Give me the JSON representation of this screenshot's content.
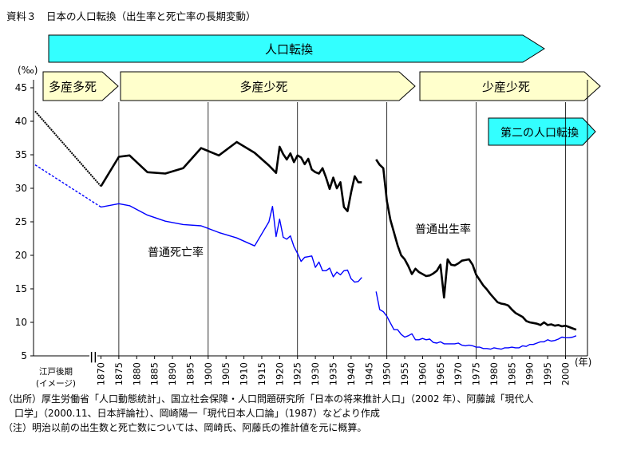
{
  "caption": "資料３　日本の人口転換（出生率と死亡率の長期変動）",
  "notes": {
    "source_line1": "（出所）厚生労働省「人口動態統計」、国立社会保障・人口問題研究所「日本の将来推計人口」（2002 年）、阿藤誠「現代人",
    "source_line2": "口学」（2000.11、日本評論社）、岡崎陽一「現代日本人口論」（1987）などより作成",
    "note_line": "（注）明治以前の出生数と死亡数については、岡崎氏、阿藤氏の推計値を元に概算。"
  },
  "chart_data": {
    "type": "line",
    "title": "日本の人口転換（出生率と死亡率の長期変動）",
    "ylabel": "(‰)",
    "xlabel": "(年)",
    "ylim": [
      5,
      45
    ],
    "yticks": [
      5,
      10,
      15,
      20,
      25,
      30,
      35,
      40,
      45
    ],
    "xlim": [
      1870,
      2003
    ],
    "xticks": [
      "1870",
      "1875",
      "1880",
      "1885",
      "1890",
      "1895",
      "1900",
      "1905",
      "1910",
      "1915",
      "1920",
      "1925",
      "1930",
      "1935",
      "1940",
      "1945",
      "1950",
      "1955",
      "1960",
      "1965",
      "1970",
      "1975",
      "1980",
      "1985",
      "1990",
      "1995",
      "2000"
    ],
    "edo_label_line1": "江戸後期",
    "edo_label_line2": "(イメージ)",
    "axis_break": "||",
    "grid": "vertical lines at 1875, 1900, 1925, 1950, 1975, 2000",
    "phase_banner": "人口転換",
    "phases": [
      {
        "label": "多産多死",
        "start": "edo",
        "end": 1874
      },
      {
        "label": "多産少死",
        "start": 1875,
        "end": 1949
      },
      {
        "label": "少産少死",
        "start": 1953,
        "end": 2001
      }
    ],
    "second_transition_label": "第二の人口転換",
    "series": [
      {
        "name": "普通出生率",
        "color": "#000000",
        "edo_start": 41.5,
        "edo_dashed": false,
        "points": [
          [
            1870,
            30.3
          ],
          [
            1875,
            34.7
          ],
          [
            1878,
            34.9
          ],
          [
            1883,
            32.4
          ],
          [
            1888,
            32.2
          ],
          [
            1893,
            33.0
          ],
          [
            1898,
            36.0
          ],
          [
            1903,
            34.9
          ],
          [
            1908,
            36.9
          ],
          [
            1913,
            35.3
          ],
          [
            1917,
            33.4
          ],
          [
            1919,
            32.3
          ],
          [
            1920,
            36.2
          ],
          [
            1921,
            35.1
          ],
          [
            1922,
            34.3
          ],
          [
            1923,
            35.2
          ],
          [
            1924,
            33.9
          ],
          [
            1925,
            34.9
          ],
          [
            1926,
            34.6
          ],
          [
            1927,
            33.6
          ],
          [
            1928,
            34.4
          ],
          [
            1929,
            32.8
          ],
          [
            1930,
            32.4
          ],
          [
            1931,
            32.2
          ],
          [
            1932,
            33.0
          ],
          [
            1933,
            31.6
          ],
          [
            1934,
            29.9
          ],
          [
            1935,
            31.6
          ],
          [
            1936,
            30.0
          ],
          [
            1937,
            30.9
          ],
          [
            1938,
            27.2
          ],
          [
            1939,
            26.6
          ],
          [
            1940,
            29.4
          ],
          [
            1941,
            31.8
          ],
          [
            1942,
            30.9
          ],
          [
            1943,
            30.9
          ],
          null,
          [
            1947,
            34.3
          ],
          [
            1948,
            33.5
          ],
          [
            1949,
            33.0
          ],
          [
            1950,
            28.1
          ],
          [
            1951,
            25.3
          ],
          [
            1952,
            23.4
          ],
          [
            1953,
            21.5
          ],
          [
            1954,
            20.0
          ],
          [
            1955,
            19.4
          ],
          [
            1956,
            18.4
          ],
          [
            1957,
            17.2
          ],
          [
            1958,
            18.0
          ],
          [
            1959,
            17.5
          ],
          [
            1960,
            17.2
          ],
          [
            1961,
            16.9
          ],
          [
            1962,
            17.0
          ],
          [
            1963,
            17.3
          ],
          [
            1964,
            17.7
          ],
          [
            1965,
            18.6
          ],
          [
            1966,
            13.7
          ],
          [
            1967,
            19.4
          ],
          [
            1968,
            18.6
          ],
          [
            1969,
            18.5
          ],
          [
            1970,
            18.8
          ],
          [
            1971,
            19.2
          ],
          [
            1972,
            19.3
          ],
          [
            1973,
            19.4
          ],
          [
            1974,
            18.6
          ],
          [
            1975,
            17.1
          ],
          [
            1976,
            16.3
          ],
          [
            1977,
            15.5
          ],
          [
            1978,
            14.9
          ],
          [
            1979,
            14.2
          ],
          [
            1980,
            13.6
          ],
          [
            1981,
            13.0
          ],
          [
            1982,
            12.8
          ],
          [
            1983,
            12.7
          ],
          [
            1984,
            12.5
          ],
          [
            1985,
            11.9
          ],
          [
            1986,
            11.4
          ],
          [
            1987,
            11.1
          ],
          [
            1988,
            10.8
          ],
          [
            1989,
            10.2
          ],
          [
            1990,
            10.0
          ],
          [
            1991,
            9.9
          ],
          [
            1992,
            9.8
          ],
          [
            1993,
            9.6
          ],
          [
            1994,
            10.0
          ],
          [
            1995,
            9.6
          ],
          [
            1996,
            9.7
          ],
          [
            1997,
            9.5
          ],
          [
            1998,
            9.6
          ],
          [
            1999,
            9.4
          ],
          [
            2000,
            9.5
          ],
          [
            2001,
            9.3
          ],
          [
            2002,
            9.1
          ],
          [
            2003,
            8.9
          ]
        ]
      },
      {
        "name": "普通死亡率",
        "color": "#0000ff",
        "edo_start": 33.5,
        "edo_dashed": true,
        "points": [
          [
            1870,
            27.2
          ],
          [
            1875,
            27.7
          ],
          [
            1878,
            27.4
          ],
          [
            1883,
            26.0
          ],
          [
            1888,
            25.1
          ],
          [
            1893,
            24.6
          ],
          [
            1898,
            24.4
          ],
          [
            1903,
            23.4
          ],
          [
            1908,
            22.6
          ],
          [
            1913,
            21.4
          ],
          [
            1917,
            25.0
          ],
          [
            1918,
            27.3
          ],
          [
            1919,
            22.8
          ],
          [
            1920,
            25.4
          ],
          [
            1921,
            22.7
          ],
          [
            1922,
            22.4
          ],
          [
            1923,
            22.9
          ],
          [
            1924,
            21.3
          ],
          [
            1925,
            20.3
          ],
          [
            1926,
            19.1
          ],
          [
            1927,
            19.7
          ],
          [
            1928,
            19.8
          ],
          [
            1929,
            19.9
          ],
          [
            1930,
            18.2
          ],
          [
            1931,
            19.0
          ],
          [
            1932,
            17.7
          ],
          [
            1933,
            17.7
          ],
          [
            1934,
            18.1
          ],
          [
            1935,
            16.8
          ],
          [
            1936,
            17.5
          ],
          [
            1937,
            17.1
          ],
          [
            1938,
            17.7
          ],
          [
            1939,
            17.8
          ],
          [
            1940,
            16.5
          ],
          [
            1941,
            16.0
          ],
          [
            1942,
            16.1
          ],
          [
            1943,
            16.7
          ],
          null,
          [
            1947,
            14.6
          ],
          [
            1948,
            11.9
          ],
          [
            1949,
            11.6
          ],
          [
            1950,
            10.9
          ],
          [
            1951,
            9.9
          ],
          [
            1952,
            8.9
          ],
          [
            1953,
            8.9
          ],
          [
            1954,
            8.2
          ],
          [
            1955,
            7.8
          ],
          [
            1956,
            8.0
          ],
          [
            1957,
            8.3
          ],
          [
            1958,
            7.4
          ],
          [
            1959,
            7.4
          ],
          [
            1960,
            7.6
          ],
          [
            1961,
            7.4
          ],
          [
            1962,
            7.5
          ],
          [
            1963,
            7.0
          ],
          [
            1964,
            6.9
          ],
          [
            1965,
            7.1
          ],
          [
            1966,
            6.8
          ],
          [
            1967,
            6.8
          ],
          [
            1968,
            6.8
          ],
          [
            1969,
            6.8
          ],
          [
            1970,
            6.9
          ],
          [
            1971,
            6.6
          ],
          [
            1972,
            6.5
          ],
          [
            1973,
            6.6
          ],
          [
            1974,
            6.5
          ],
          [
            1975,
            6.3
          ],
          [
            1976,
            6.3
          ],
          [
            1977,
            6.1
          ],
          [
            1978,
            6.1
          ],
          [
            1979,
            6.0
          ],
          [
            1980,
            6.2
          ],
          [
            1981,
            6.1
          ],
          [
            1982,
            6.0
          ],
          [
            1983,
            6.2
          ],
          [
            1984,
            6.2
          ],
          [
            1985,
            6.3
          ],
          [
            1986,
            6.2
          ],
          [
            1987,
            6.2
          ],
          [
            1988,
            6.5
          ],
          [
            1989,
            6.4
          ],
          [
            1990,
            6.7
          ],
          [
            1991,
            6.7
          ],
          [
            1992,
            6.9
          ],
          [
            1993,
            7.1
          ],
          [
            1994,
            7.1
          ],
          [
            1995,
            7.4
          ],
          [
            1996,
            7.2
          ],
          [
            1997,
            7.3
          ],
          [
            1998,
            7.5
          ],
          [
            1999,
            7.8
          ],
          [
            2000,
            7.7
          ],
          [
            2001,
            7.7
          ],
          [
            2002,
            7.8
          ],
          [
            2003,
            8.0
          ]
        ]
      }
    ],
    "annotations": [
      {
        "text": "普通出生率",
        "near": "birth series, 1963-1976 at about 24‰"
      },
      {
        "text": "普通死亡率",
        "near": "death series, 1880-1898 at about 19‰"
      }
    ]
  }
}
